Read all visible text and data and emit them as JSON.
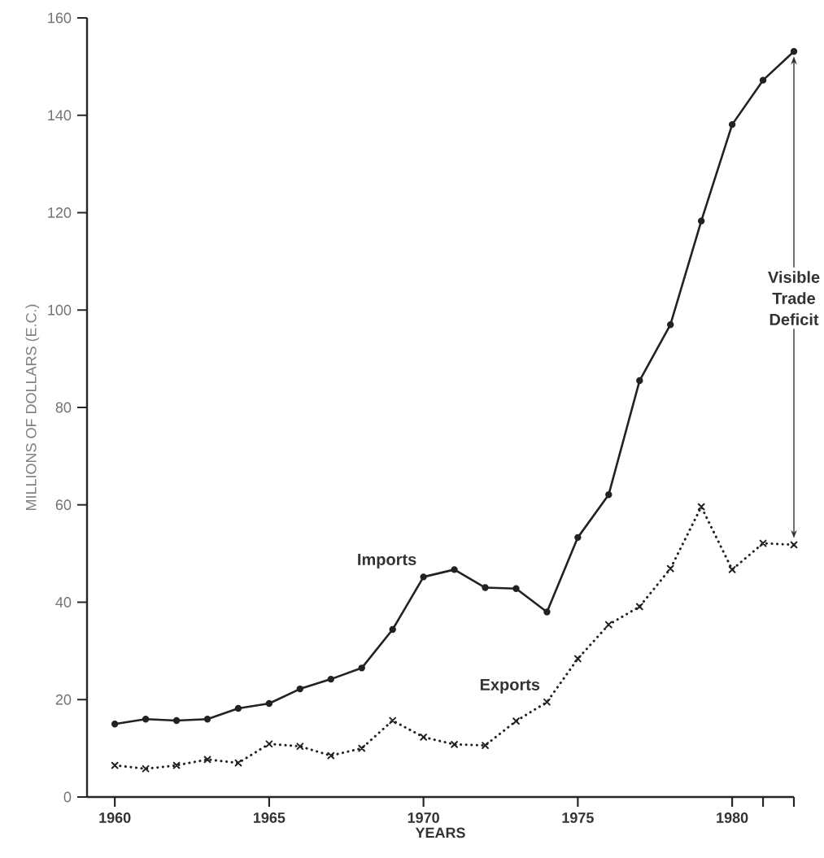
{
  "chart_data": {
    "type": "line",
    "xlabel": "YEARS",
    "ylabel": "MILLIONS OF DOLLARS (E.C.)",
    "x": [
      1960,
      1961,
      1962,
      1963,
      1964,
      1965,
      1966,
      1967,
      1968,
      1969,
      1970,
      1971,
      1972,
      1973,
      1974,
      1975,
      1976,
      1977,
      1978,
      1979,
      1980,
      1981,
      1982
    ],
    "series": [
      {
        "name": "Imports",
        "color": "#222222",
        "marker": "circle",
        "line_style": "solid",
        "values": [
          15.0,
          16.0,
          15.7,
          16.0,
          18.2,
          19.2,
          22.2,
          24.2,
          26.5,
          34.4,
          45.2,
          46.7,
          43.0,
          42.8,
          38.0,
          53.3,
          62.1,
          85.5,
          97.0,
          118.3,
          138.1,
          147.2,
          153.1
        ]
      },
      {
        "name": "Exports",
        "color": "#222222",
        "marker": "cross",
        "line_style": "dotted",
        "values": [
          6.5,
          5.8,
          6.5,
          7.7,
          7.0,
          10.9,
          10.4,
          8.5,
          10.0,
          15.7,
          12.3,
          10.8,
          10.6,
          15.6,
          19.5,
          28.4,
          35.4,
          39.1,
          46.9,
          59.6,
          46.7,
          52.1,
          51.8
        ]
      }
    ],
    "annotations": [
      "Visible Trade Deficit"
    ],
    "xlim": [
      1959.1,
      1982
    ],
    "ylim": [
      0,
      160
    ],
    "xticks": [
      1960,
      1965,
      1970,
      1975,
      1980,
      {
        "value": 1981,
        "label": null
      },
      {
        "value": 1982,
        "label": null
      }
    ],
    "yticks": [
      0,
      20,
      40,
      60,
      80,
      100,
      120,
      140,
      160
    ],
    "grid": false,
    "legend": false
  }
}
